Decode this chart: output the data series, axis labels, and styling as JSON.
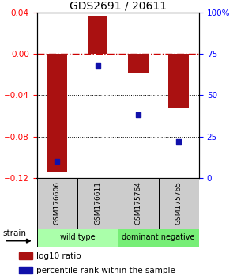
{
  "title": "GDS2691 / 20611",
  "samples": [
    "GSM176606",
    "GSM176611",
    "GSM175764",
    "GSM175765"
  ],
  "log10_ratios": [
    -0.115,
    0.037,
    -0.018,
    -0.052
  ],
  "percentile_ranks": [
    10,
    68,
    38,
    22
  ],
  "ylim_left": [
    -0.12,
    0.04
  ],
  "ylim_right": [
    0,
    100
  ],
  "left_ticks": [
    0.04,
    0,
    -0.04,
    -0.08,
    -0.12
  ],
  "right_ticks": [
    100,
    75,
    50,
    25,
    0
  ],
  "bar_color": "#aa1111",
  "dot_color": "#1111aa",
  "bar_width": 0.5,
  "groups": [
    {
      "label": "wild type",
      "samples_idx": [
        0,
        1
      ],
      "color": "#aaffaa"
    },
    {
      "label": "dominant negative",
      "samples_idx": [
        2,
        3
      ],
      "color": "#77ee77"
    }
  ],
  "strain_label": "strain",
  "legend_bar_label": "log10 ratio",
  "legend_dot_label": "percentile rank within the sample",
  "hline_zero_color": "#cc0000",
  "hline_dotted_color": "#000000",
  "sample_box_color": "#cccccc"
}
